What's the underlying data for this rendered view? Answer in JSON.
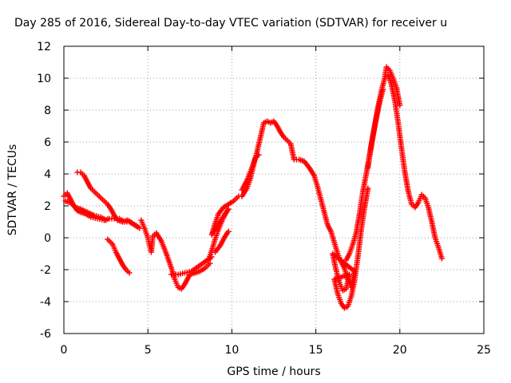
{
  "chart_data": {
    "type": "scatter",
    "title": "Day 285 of 2016, Sidereal Day-to-day VTEC variation (SDTVAR) for receiver u",
    "xlabel": "GPS time / hours",
    "ylabel": "SDTVAR / TECUs",
    "xlim": [
      0,
      25
    ],
    "ylim": [
      -6,
      12
    ],
    "xticks": [
      "0",
      "5",
      "10",
      "15",
      "20",
      "25"
    ],
    "yticks": [
      "-6",
      "-4",
      "-2",
      "0",
      "2",
      "4",
      "6",
      "8",
      "10",
      "12"
    ],
    "grid": true,
    "marker": "+",
    "color": "#ff0000",
    "series": [
      {
        "values": [
          [
            0.0,
            2.6
          ],
          [
            0.2,
            2.8
          ],
          [
            0.4,
            2.4
          ],
          [
            0.6,
            2.0
          ],
          [
            0.8,
            1.7
          ],
          [
            1.0,
            1.6
          ],
          [
            1.3,
            1.5
          ],
          [
            1.6,
            1.3
          ],
          [
            2.0,
            1.2
          ],
          [
            2.4,
            1.1
          ],
          [
            2.7,
            1.2
          ],
          [
            3.0,
            1.2
          ],
          [
            3.3,
            1.2
          ],
          [
            3.6,
            1.0
          ],
          [
            3.9,
            1.0
          ],
          [
            4.2,
            0.8
          ],
          [
            4.5,
            0.6
          ],
          [
            0.1,
            2.3
          ],
          [
            0.4,
            2.2
          ],
          [
            0.7,
            1.9
          ],
          [
            1.0,
            1.8
          ],
          [
            1.4,
            1.6
          ],
          [
            1.8,
            1.4
          ],
          [
            2.2,
            1.3
          ],
          [
            2.5,
            1.1
          ],
          [
            0.8,
            4.1
          ],
          [
            1.0,
            4.1
          ],
          [
            1.2,
            3.9
          ],
          [
            1.4,
            3.5
          ],
          [
            1.6,
            3.1
          ],
          [
            1.8,
            2.9
          ],
          [
            2.0,
            2.7
          ],
          [
            2.2,
            2.5
          ],
          [
            2.4,
            2.3
          ],
          [
            2.6,
            2.1
          ],
          [
            2.8,
            1.8
          ],
          [
            3.0,
            1.4
          ],
          [
            3.2,
            1.1
          ],
          [
            3.5,
            1.0
          ],
          [
            3.8,
            1.1
          ],
          [
            4.1,
            0.9
          ],
          [
            4.4,
            0.7
          ],
          [
            2.6,
            -0.1
          ],
          [
            2.9,
            -0.4
          ],
          [
            3.1,
            -0.9
          ],
          [
            3.3,
            -1.3
          ],
          [
            3.5,
            -1.7
          ],
          [
            3.7,
            -2.0
          ],
          [
            3.9,
            -2.2
          ],
          [
            4.6,
            1.1
          ],
          [
            4.8,
            0.6
          ],
          [
            5.0,
            0.0
          ],
          [
            5.1,
            -0.5
          ],
          [
            5.2,
            -0.9
          ],
          [
            5.3,
            0.1
          ],
          [
            5.5,
            0.3
          ],
          [
            5.8,
            -0.2
          ],
          [
            6.1,
            -1.0
          ],
          [
            6.4,
            -1.9
          ],
          [
            6.6,
            -2.6
          ],
          [
            6.8,
            -3.1
          ],
          [
            7.0,
            -3.2
          ],
          [
            7.2,
            -2.9
          ],
          [
            7.5,
            -2.3
          ],
          [
            7.8,
            -2.2
          ],
          [
            8.1,
            -2.1
          ],
          [
            8.4,
            -1.9
          ],
          [
            8.7,
            -1.6
          ],
          [
            6.4,
            -2.3
          ],
          [
            6.8,
            -2.3
          ],
          [
            7.2,
            -2.2
          ],
          [
            7.6,
            -2.1
          ],
          [
            8.0,
            -1.8
          ],
          [
            8.4,
            -1.5
          ],
          [
            8.8,
            -1.2
          ],
          [
            8.6,
            -1.4
          ],
          [
            8.8,
            -0.8
          ],
          [
            9.0,
            -0.1
          ],
          [
            9.2,
            0.5
          ],
          [
            9.4,
            1.0
          ],
          [
            9.6,
            1.5
          ],
          [
            9.8,
            1.8
          ],
          [
            8.8,
            0.2
          ],
          [
            9.0,
            0.9
          ],
          [
            9.2,
            1.5
          ],
          [
            9.5,
            1.9
          ],
          [
            9.8,
            2.1
          ],
          [
            10.1,
            2.3
          ],
          [
            10.4,
            2.6
          ],
          [
            9.0,
            -0.9
          ],
          [
            9.3,
            -0.5
          ],
          [
            9.6,
            0.1
          ],
          [
            9.8,
            0.4
          ],
          [
            10.6,
            3.0
          ],
          [
            10.9,
            3.6
          ],
          [
            11.2,
            4.4
          ],
          [
            11.4,
            5.0
          ],
          [
            11.6,
            5.2
          ],
          [
            10.6,
            2.6
          ],
          [
            10.9,
            3.1
          ],
          [
            11.1,
            3.7
          ],
          [
            11.3,
            4.6
          ],
          [
            11.5,
            5.4
          ],
          [
            11.7,
            6.3
          ],
          [
            11.9,
            7.2
          ],
          [
            12.1,
            7.3
          ],
          [
            12.3,
            7.2
          ],
          [
            12.5,
            7.3
          ],
          [
            12.7,
            7.0
          ],
          [
            12.9,
            6.6
          ],
          [
            13.1,
            6.3
          ],
          [
            13.3,
            6.1
          ],
          [
            13.5,
            5.9
          ],
          [
            13.7,
            4.9
          ],
          [
            14.0,
            4.9
          ],
          [
            14.3,
            4.8
          ],
          [
            14.6,
            4.4
          ],
          [
            14.9,
            3.9
          ],
          [
            15.1,
            3.2
          ],
          [
            15.3,
            2.4
          ],
          [
            15.5,
            1.6
          ],
          [
            15.7,
            0.8
          ],
          [
            15.9,
            0.4
          ],
          [
            16.1,
            -0.3
          ],
          [
            16.3,
            -1.0
          ],
          [
            16.5,
            -1.5
          ],
          [
            16.7,
            -1.9
          ],
          [
            16.9,
            -2.6
          ],
          [
            17.1,
            -3.1
          ],
          [
            17.3,
            -2.1
          ],
          [
            16.0,
            -1.0
          ],
          [
            16.2,
            -2.0
          ],
          [
            16.4,
            -2.8
          ],
          [
            16.6,
            -3.3
          ],
          [
            16.8,
            -3.2
          ],
          [
            17.0,
            -2.3
          ],
          [
            16.1,
            -2.6
          ],
          [
            16.3,
            -3.5
          ],
          [
            16.5,
            -4.1
          ],
          [
            16.7,
            -4.4
          ],
          [
            16.9,
            -4.3
          ],
          [
            17.1,
            -3.7
          ],
          [
            17.3,
            -2.7
          ],
          [
            17.5,
            -1.2
          ],
          [
            17.7,
            0.5
          ],
          [
            17.9,
            1.9
          ],
          [
            18.1,
            3.1
          ],
          [
            16.8,
            -1.4
          ],
          [
            17.0,
            -1.0
          ],
          [
            17.2,
            -0.4
          ],
          [
            17.4,
            0.3
          ],
          [
            17.6,
            1.5
          ],
          [
            17.8,
            2.9
          ],
          [
            18.0,
            4.0
          ],
          [
            18.2,
            5.2
          ],
          [
            18.4,
            6.4
          ],
          [
            18.6,
            7.5
          ],
          [
            18.8,
            8.5
          ],
          [
            19.0,
            9.3
          ],
          [
            18.1,
            4.4
          ],
          [
            18.3,
            5.8
          ],
          [
            18.5,
            7.0
          ],
          [
            18.7,
            8.2
          ],
          [
            18.9,
            9.2
          ],
          [
            19.1,
            10.0
          ],
          [
            19.2,
            10.7
          ],
          [
            19.4,
            10.5
          ],
          [
            19.6,
            10.0
          ],
          [
            19.8,
            9.4
          ],
          [
            20.0,
            8.3
          ],
          [
            19.3,
            10.2
          ],
          [
            19.5,
            9.6
          ],
          [
            19.7,
            8.6
          ],
          [
            19.9,
            7.2
          ],
          [
            20.1,
            5.6
          ],
          [
            20.3,
            4.1
          ],
          [
            20.5,
            2.9
          ],
          [
            20.7,
            2.1
          ],
          [
            20.9,
            1.9
          ],
          [
            21.1,
            2.2
          ],
          [
            21.3,
            2.7
          ],
          [
            21.5,
            2.5
          ],
          [
            21.7,
            1.9
          ],
          [
            21.9,
            1.0
          ],
          [
            22.1,
            0.0
          ],
          [
            22.3,
            -0.6
          ],
          [
            22.5,
            -1.3
          ]
        ]
      }
    ]
  }
}
